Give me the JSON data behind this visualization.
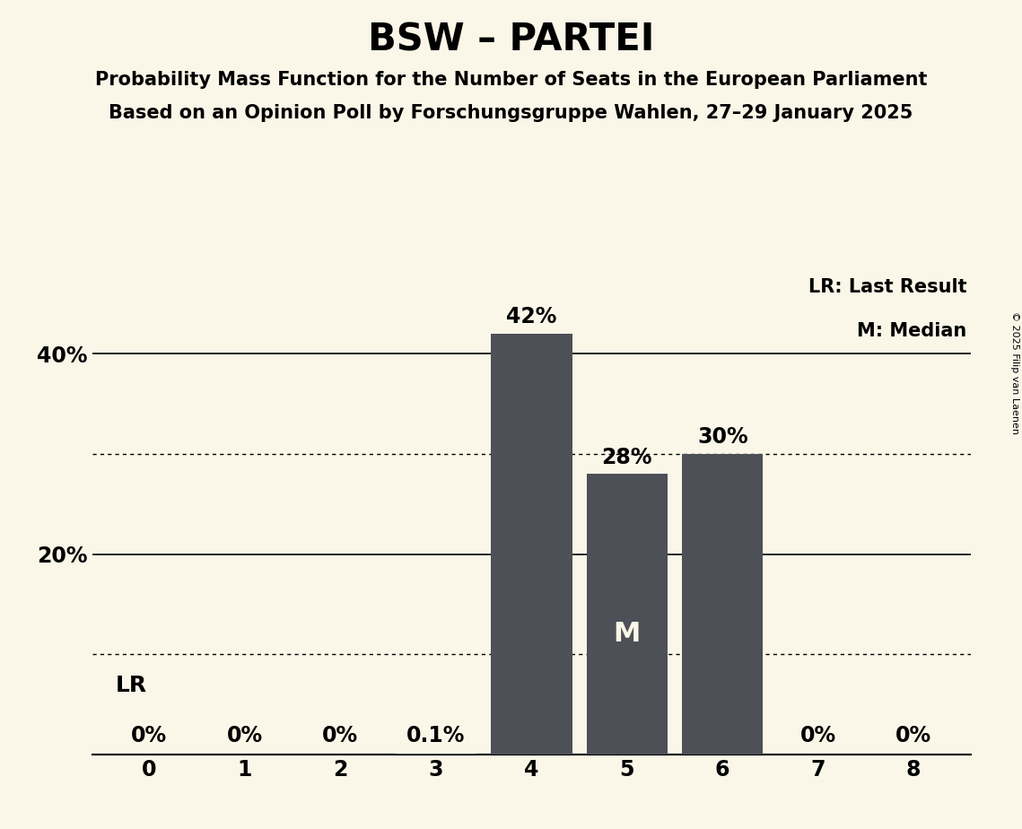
{
  "title": "BSW – PARTEI",
  "subtitle1": "Probability Mass Function for the Number of Seats in the European Parliament",
  "subtitle2": "Based on an Opinion Poll by Forschungsgruppe Wahlen, 27–29 January 2025",
  "copyright": "© 2025 Filip van Laenen",
  "categories": [
    0,
    1,
    2,
    3,
    4,
    5,
    6,
    7,
    8
  ],
  "values": [
    0.0,
    0.0,
    0.0,
    0.001,
    0.42,
    0.28,
    0.3,
    0.0,
    0.0
  ],
  "bar_labels": [
    "0%",
    "0%",
    "0%",
    "0.1%",
    "42%",
    "28%",
    "30%",
    "0%",
    "0%"
  ],
  "bar_color": "#4d5057",
  "background_color": "#faf7e8",
  "median_seat": 5,
  "median_label": "M",
  "lr_seat": 0,
  "lr_label": "LR",
  "legend_lr": "LR: Last Result",
  "legend_m": "M: Median",
  "yticks": [
    0.0,
    0.2,
    0.4
  ],
  "ytick_labels": [
    "",
    "20%",
    "40%"
  ],
  "ylim": [
    0,
    0.48
  ],
  "dotted_lines": [
    0.1,
    0.3
  ],
  "solid_lines": [
    0.2,
    0.4
  ],
  "title_fontsize": 30,
  "subtitle_fontsize": 15,
  "label_fontsize": 15,
  "tick_fontsize": 17,
  "bar_label_fontsize": 17,
  "median_label_fontsize": 22,
  "lr_label_fontsize": 18,
  "copyright_fontsize": 8
}
